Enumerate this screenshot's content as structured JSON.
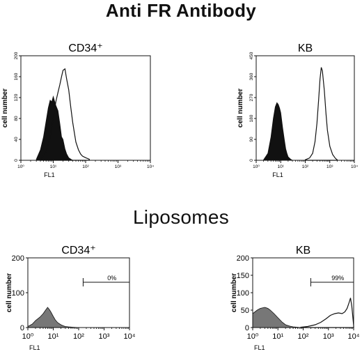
{
  "headings": {
    "top": "Anti FR Antibody",
    "bottom": "Liposomes"
  },
  "chart_data": [
    {
      "type": "area",
      "panel_id": "antibody-cd34",
      "title": "CD34⁺",
      "xlabel": "FL1",
      "ylabel": "cell number",
      "x_scale": "log",
      "xlim": [
        1,
        10000
      ],
      "ylim": [
        0,
        200
      ],
      "x_ticks": [
        1,
        10,
        100,
        1000,
        10000
      ],
      "x_tick_labels": [
        "10⁰",
        "10¹",
        "10²",
        "10³",
        "10⁴"
      ],
      "y_ticks": [
        0,
        40,
        80,
        120,
        160,
        200
      ],
      "y_tick_labels": [
        "0",
        "40",
        "80",
        "120",
        "160",
        "200"
      ],
      "series": [
        {
          "style": "filled-black",
          "x": [
            3.0,
            4.0,
            5.0,
            6.0,
            7.0,
            8.0,
            9.0,
            10.0,
            12.0,
            14.0,
            16.0,
            18.0,
            20.0,
            23.0,
            26.0,
            30.0,
            35.0,
            40.0
          ],
          "y": [
            2,
            20,
            45,
            75,
            100,
            115,
            112,
            122,
            105,
            95,
            70,
            45,
            40,
            22,
            12,
            5,
            2,
            0
          ]
        },
        {
          "style": "open-line",
          "x": [
            4.0,
            6.0,
            8.0,
            10.0,
            12.0,
            14.0,
            16.0,
            18.0,
            20.0,
            23.0,
            26.0,
            30.0,
            35.0,
            40.0,
            45.0,
            50.0,
            60.0,
            70.0,
            80.0,
            100.0,
            130.0
          ],
          "y": [
            2,
            15,
            45,
            80,
            112,
            130,
            145,
            160,
            172,
            175,
            155,
            135,
            100,
            72,
            52,
            35,
            20,
            12,
            8,
            5,
            2
          ]
        }
      ]
    },
    {
      "type": "area",
      "panel_id": "antibody-kb",
      "title": "KB",
      "xlabel": "FL1",
      "ylabel": "cell number",
      "x_scale": "log",
      "xlim": [
        1,
        10000
      ],
      "ylim": [
        0,
        450
      ],
      "x_ticks": [
        1,
        10,
        100,
        1000,
        10000
      ],
      "x_tick_labels": [
        "10⁰",
        "10¹",
        "10²",
        "10³",
        "10⁴"
      ],
      "y_ticks": [
        0,
        90,
        180,
        270,
        360,
        450
      ],
      "y_tick_labels": [
        "0",
        "90",
        "180",
        "270",
        "360",
        "450"
      ],
      "series": [
        {
          "style": "filled-black",
          "x": [
            2.0,
            3.0,
            4.0,
            5.0,
            6.0,
            7.0,
            8.0,
            9.0,
            10.0,
            12.0,
            14.0,
            16.0,
            18.0,
            20.0,
            25.0,
            30.0
          ],
          "y": [
            2,
            30,
            100,
            180,
            230,
            248,
            240,
            225,
            205,
            140,
            90,
            50,
            30,
            15,
            5,
            0
          ]
        },
        {
          "style": "open-line",
          "x": [
            100.0,
            150.0,
            200.0,
            250.0,
            300.0,
            350.0,
            400.0,
            450.0,
            500.0,
            600.0,
            700.0,
            800.0,
            1000.0,
            1300.0,
            1700.0,
            2000.0
          ],
          "y": [
            2,
            10,
            30,
            80,
            160,
            260,
            350,
            400,
            385,
            300,
            200,
            130,
            60,
            25,
            8,
            2
          ]
        }
      ]
    },
    {
      "type": "area",
      "panel_id": "liposomes-cd34",
      "title": "CD34⁺",
      "xlabel": "FL1",
      "ylabel": "cell number",
      "x_scale": "log",
      "xlim": [
        1,
        10000
      ],
      "ylim": [
        0,
        200
      ],
      "x_ticks": [
        1,
        10,
        100,
        1000,
        10000
      ],
      "x_tick_labels": [
        "10⁰",
        "10¹",
        "10²",
        "10³",
        "10⁴"
      ],
      "y_ticks": [
        0,
        100,
        200
      ],
      "y_tick_labels": [
        "0",
        "100",
        "200"
      ],
      "gate": {
        "x_start": 150,
        "x_end": 10000,
        "y": 130,
        "label": "0%"
      },
      "series": [
        {
          "style": "filled-grey",
          "x": [
            1.0,
            1.5,
            2.0,
            3.0,
            4.0,
            5.0,
            6.0,
            7.0,
            8.0,
            10.0,
            12.0,
            15.0,
            20.0,
            25.0,
            30.0,
            40.0,
            60.0,
            100.0
          ],
          "y": [
            3,
            10,
            20,
            30,
            40,
            50,
            58,
            52,
            45,
            32,
            22,
            14,
            8,
            5,
            3,
            2,
            1,
            0
          ]
        }
      ]
    },
    {
      "type": "area",
      "panel_id": "liposomes-kb",
      "title": "KB",
      "xlabel": "FL1",
      "ylabel": "cell number",
      "x_scale": "log",
      "xlim": [
        1,
        10000
      ],
      "ylim": [
        0,
        200
      ],
      "x_ticks": [
        1,
        10,
        100,
        1000,
        10000
      ],
      "x_tick_labels": [
        "10⁰",
        "10¹",
        "10²",
        "10³",
        "10⁴"
      ],
      "y_ticks": [
        0,
        50,
        100,
        150,
        200
      ],
      "y_tick_labels": [
        "0",
        "50",
        "100",
        "150",
        "200"
      ],
      "gate": {
        "x_start": 200,
        "x_end": 10000,
        "y": 130,
        "label": "99%"
      },
      "series": [
        {
          "style": "filled-grey",
          "x": [
            1.0,
            1.5,
            2.0,
            3.0,
            4.0,
            5.0,
            7.0,
            10.0,
            15.0,
            20.0,
            30.0,
            40.0,
            60.0,
            80.0
          ],
          "y": [
            40,
            50,
            55,
            58,
            55,
            50,
            40,
            28,
            15,
            8,
            4,
            2,
            1,
            0
          ]
        },
        {
          "style": "open-line",
          "x": [
            80.0,
            150.0,
            300.0,
            500.0,
            800.0,
            1200.0,
            1800.0,
            2500.0,
            3500.0,
            4500.0,
            5500.0,
            6500.0,
            7500.0,
            8500.0,
            10000.0
          ],
          "y": [
            1,
            3,
            8,
            15,
            25,
            35,
            40,
            42,
            40,
            45,
            55,
            70,
            85,
            60,
            5
          ]
        }
      ]
    }
  ]
}
